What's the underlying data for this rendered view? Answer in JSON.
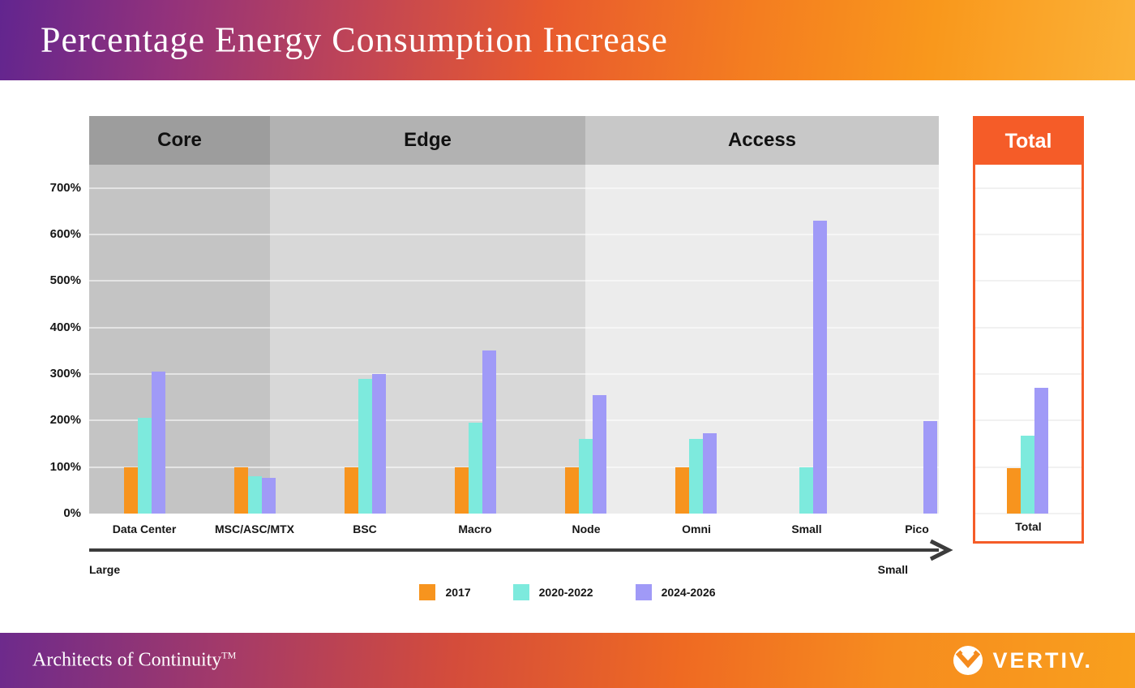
{
  "header": {
    "title": "Percentage Energy Consumption Increase"
  },
  "footer": {
    "tagline": "Architects of Continuity",
    "tagline_mark": "TM",
    "brand": "VERTIV.",
    "logo_icon": "vertiv-circle-v-icon"
  },
  "colors": {
    "bar_2017": "#F7941E",
    "bar_2020_2022": "#7DEADD",
    "bar_2024_2026": "#A09AF7",
    "total_accent": "#F55C28",
    "axis_arrow": "#3C3C3C"
  },
  "chart_data": {
    "type": "bar",
    "title": "Percentage Energy Consumption Increase",
    "xlabel": "",
    "ylabel": "",
    "ylim": [
      0,
      750
    ],
    "grid": true,
    "legend_position": "bottom",
    "y_axis": {
      "ticks": [
        {
          "value": 700,
          "label": "700%"
        },
        {
          "value": 600,
          "label": "600%"
        },
        {
          "value": 500,
          "label": "500%"
        },
        {
          "value": 400,
          "label": "400%"
        },
        {
          "value": 300,
          "label": "300%"
        },
        {
          "value": 200,
          "label": "200%"
        },
        {
          "value": 100,
          "label": "100%"
        },
        {
          "value": 0,
          "label": "0%"
        }
      ]
    },
    "sections": [
      {
        "label": "Core",
        "header_color": "#9D9D9D",
        "area_color": "#C4C4C4",
        "categories": [
          "Data Center",
          "MSC/ASC/MTX"
        ]
      },
      {
        "label": "Edge",
        "header_color": "#B2B2B2",
        "area_color": "#D8D8D8",
        "categories": [
          "BSC",
          "Macro",
          "Node"
        ]
      },
      {
        "label": "Access",
        "header_color": "#C8C8C8",
        "area_color": "#ECECEC",
        "categories": [
          "Omni",
          "Small",
          "Pico"
        ]
      },
      {
        "label": "Total",
        "header_color": "#F55C28",
        "area_color": "#FFFFFF",
        "categories": [
          "Total"
        ]
      }
    ],
    "categories": [
      "Data Center",
      "MSC/ASC/MTX",
      "BSC",
      "Macro",
      "Node",
      "Omni",
      "Small",
      "Pico",
      "Total"
    ],
    "series": [
      {
        "name": "2017",
        "color": "#F7941E",
        "values": [
          100,
          100,
          100,
          100,
          100,
          100,
          0,
          0,
          97
        ]
      },
      {
        "name": "2020-2022",
        "color": "#7DEADD",
        "values": [
          205,
          80,
          290,
          195,
          160,
          160,
          100,
          0,
          168
        ]
      },
      {
        "name": "2024-2026",
        "color": "#A09AF7",
        "values": [
          305,
          77,
          300,
          350,
          255,
          172,
          630,
          198,
          270
        ]
      }
    ],
    "size_axis": {
      "left_label": "Large",
      "right_label": "Small"
    }
  }
}
